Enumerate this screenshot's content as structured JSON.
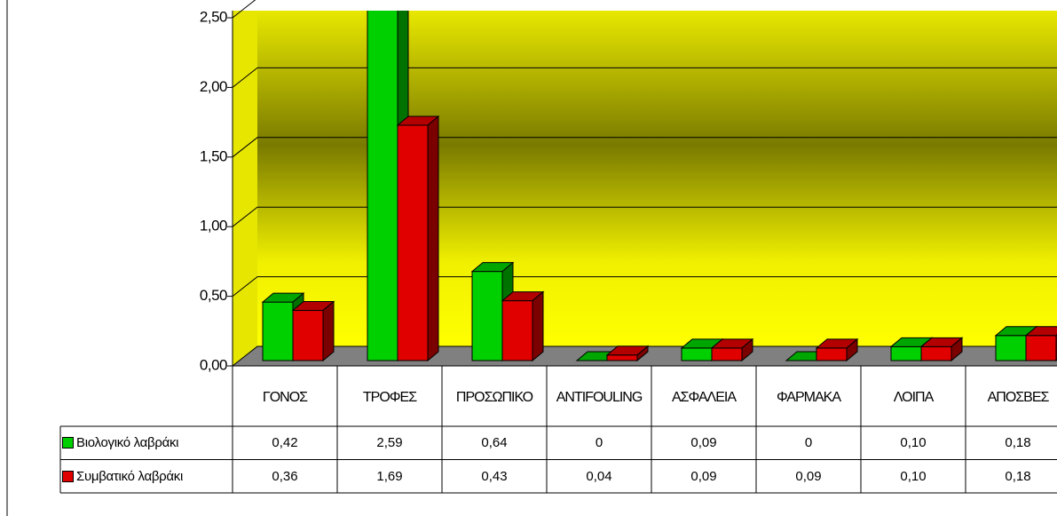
{
  "chart_data": {
    "type": "bar",
    "categories": [
      "ΓΟΝΟΣ",
      "ΤΡΟΦΕΣ",
      "ΠΡΟΣΩΠΙΚΟ",
      "ANTIFOULING",
      "ΑΣΦΑΛΕΙΑ",
      "ΦΑΡΜΑΚΑ",
      "ΛΟΙΠΑ",
      "ΑΠΟΣΒΕΣ"
    ],
    "series": [
      {
        "name": "Βιολογικό λαβράκι",
        "color": "#00d000",
        "values": [
          0.42,
          2.59,
          0.64,
          0,
          0.09,
          0,
          0.1,
          0.18
        ],
        "value_labels": [
          "0,42",
          "2,59",
          "0,64",
          "0",
          "0,09",
          "0",
          "0,10",
          "0,18"
        ]
      },
      {
        "name": "Συμβατικό λαβράκι",
        "color": "#e00000",
        "values": [
          0.36,
          1.69,
          0.43,
          0.04,
          0.09,
          0.09,
          0.1,
          0.18
        ],
        "value_labels": [
          "0,36",
          "1,69",
          "0,43",
          "0,04",
          "0,09",
          "0,09",
          "0,10",
          "0,18"
        ]
      }
    ],
    "ylim": [
      0,
      2.5
    ],
    "yticks": [
      {
        "value": 0,
        "label": "0,00"
      },
      {
        "value": 0.5,
        "label": "0,50"
      },
      {
        "value": 1,
        "label": "1,00"
      },
      {
        "value": 1.5,
        "label": "1,50"
      },
      {
        "value": 2,
        "label": "2,00"
      },
      {
        "value": 2.5,
        "label": "2,50"
      }
    ],
    "grid": true
  }
}
